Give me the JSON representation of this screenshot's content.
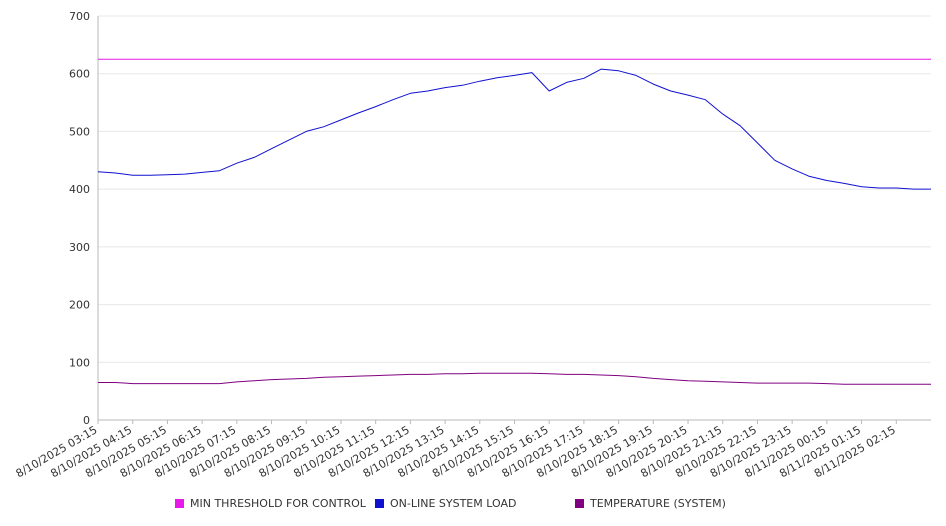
{
  "chart_data": {
    "type": "line",
    "title": "",
    "xlabel": "",
    "ylabel": "",
    "ylim": [
      0,
      700
    ],
    "yticks": [
      "0",
      "100",
      "200",
      "300",
      "400",
      "500",
      "600",
      "700"
    ],
    "grid": true,
    "legend_position": "bottom",
    "x_tick_labels": [
      "8/10/2025 03:15",
      "8/10/2025 04:15",
      "8/10/2025 05:15",
      "8/10/2025 06:15",
      "8/10/2025 07:15",
      "8/10/2025 08:15",
      "8/10/2025 09:15",
      "8/10/2025 10:15",
      "8/10/2025 11:15",
      "8/10/2025 12:15",
      "8/10/2025 13:15",
      "8/10/2025 14:15",
      "8/10/2025 15:15",
      "8/10/2025 16:15",
      "8/10/2025 17:15",
      "8/10/2025 18:15",
      "8/10/2025 19:15",
      "8/10/2025 20:15",
      "8/10/2025 21:15",
      "8/10/2025 22:15",
      "8/10/2025 23:15",
      "8/11/2025 00:15",
      "8/11/2025 01:15",
      "8/11/2025 02:15"
    ],
    "x": [
      "8/10/2025 03:15",
      "8/10/2025 03:45",
      "8/10/2025 04:15",
      "8/10/2025 04:45",
      "8/10/2025 05:15",
      "8/10/2025 05:45",
      "8/10/2025 06:15",
      "8/10/2025 06:45",
      "8/10/2025 07:15",
      "8/10/2025 07:45",
      "8/10/2025 08:15",
      "8/10/2025 08:45",
      "8/10/2025 09:15",
      "8/10/2025 09:45",
      "8/10/2025 10:15",
      "8/10/2025 10:45",
      "8/10/2025 11:15",
      "8/10/2025 11:45",
      "8/10/2025 12:15",
      "8/10/2025 12:45",
      "8/10/2025 13:15",
      "8/10/2025 13:45",
      "8/10/2025 14:15",
      "8/10/2025 14:45",
      "8/10/2025 15:15",
      "8/10/2025 15:45",
      "8/10/2025 16:15",
      "8/10/2025 16:45",
      "8/10/2025 17:15",
      "8/10/2025 17:45",
      "8/10/2025 18:15",
      "8/10/2025 18:45",
      "8/10/2025 19:15",
      "8/10/2025 19:45",
      "8/10/2025 20:15",
      "8/10/2025 20:45",
      "8/10/2025 21:15",
      "8/10/2025 21:45",
      "8/10/2025 22:15",
      "8/10/2025 22:45",
      "8/10/2025 23:15",
      "8/10/2025 23:45",
      "8/11/2025 00:15",
      "8/11/2025 00:45",
      "8/11/2025 01:15",
      "8/11/2025 01:45",
      "8/11/2025 02:15",
      "8/11/2025 02:45",
      "8/11/2025 03:15"
    ],
    "series": [
      {
        "name": "MIN THRESHOLD FOR CONTROL",
        "color": "#e619e6",
        "values": [
          625,
          625,
          625,
          625,
          625,
          625,
          625,
          625,
          625,
          625,
          625,
          625,
          625,
          625,
          625,
          625,
          625,
          625,
          625,
          625,
          625,
          625,
          625,
          625,
          625,
          625,
          625,
          625,
          625,
          625,
          625,
          625,
          625,
          625,
          625,
          625,
          625,
          625,
          625,
          625,
          625,
          625,
          625,
          625,
          625,
          625,
          625,
          625,
          625
        ]
      },
      {
        "name": "ON-LINE SYSTEM LOAD",
        "color": "#1010d0",
        "values": [
          430,
          428,
          424,
          424,
          425,
          426,
          429,
          432,
          445,
          455,
          470,
          485,
          500,
          508,
          520,
          532,
          543,
          555,
          566,
          570,
          576,
          580,
          587,
          593,
          597,
          602,
          570,
          585,
          592,
          608,
          605,
          597,
          582,
          570,
          563,
          555,
          530,
          510,
          480,
          450,
          435,
          422,
          415,
          410,
          404,
          402,
          402,
          400,
          400
        ]
      },
      {
        "name": "TEMPERATURE (SYSTEM)",
        "color": "#800080",
        "values": [
          65,
          65,
          63,
          63,
          63,
          63,
          63,
          63,
          66,
          68,
          70,
          71,
          72,
          74,
          75,
          76,
          77,
          78,
          79,
          79,
          80,
          80,
          81,
          81,
          81,
          81,
          80,
          79,
          79,
          78,
          77,
          75,
          72,
          70,
          68,
          67,
          66,
          65,
          64,
          64,
          64,
          64,
          63,
          62,
          62,
          62,
          62,
          62,
          62
        ]
      }
    ]
  }
}
